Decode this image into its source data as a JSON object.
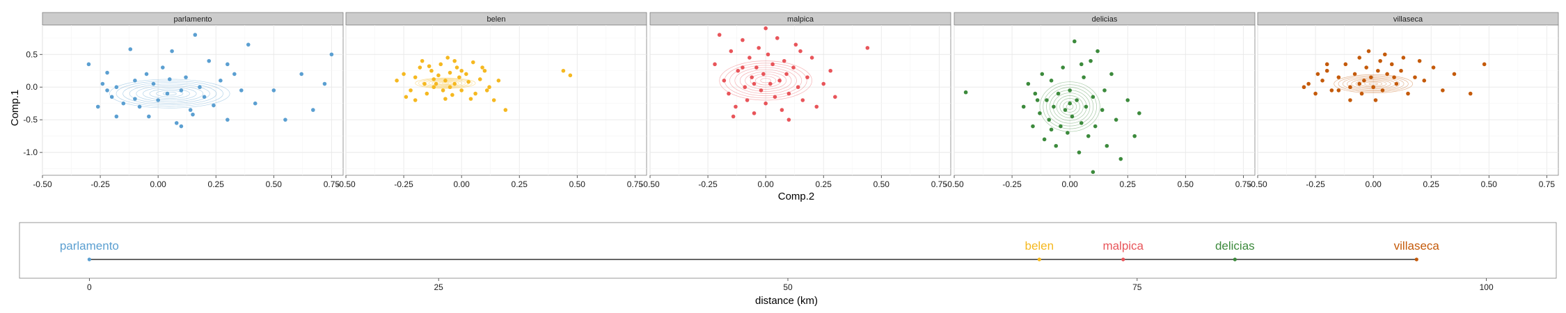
{
  "chart_data": [
    {
      "type": "scatter",
      "facets": [
        "parlamento",
        "belen",
        "malpica",
        "delicias",
        "villaseca"
      ],
      "xlabel": "Comp.2",
      "ylabel": "Comp.1",
      "xlim": [
        -0.5,
        0.8
      ],
      "ylim": [
        -1.35,
        0.95
      ],
      "xticks": [
        "-0.50",
        "-0.25",
        "0.00",
        "0.25",
        "0.50",
        "0.75"
      ],
      "xtick_values": [
        -0.5,
        -0.25,
        0,
        0.25,
        0.5,
        0.75
      ],
      "yticks": [
        "0.5",
        "0.0",
        "-0.5",
        "-1.0"
      ],
      "ytick_values": [
        0.5,
        0,
        -0.5,
        -1.0
      ],
      "grid": true,
      "density_contours": true,
      "series": [
        {
          "name": "parlamento",
          "color": "#5b9fd1",
          "center": [
            0.05,
            -0.1
          ],
          "spread": [
            0.26,
            0.22
          ],
          "points": [
            [
              -0.3,
              0.35
            ],
            [
              -0.24,
              0.05
            ],
            [
              -0.22,
              -0.05
            ],
            [
              -0.2,
              -0.15
            ],
            [
              -0.18,
              0.0
            ],
            [
              -0.15,
              -0.25
            ],
            [
              -0.12,
              0.58
            ],
            [
              -0.1,
              0.1
            ],
            [
              -0.08,
              -0.3
            ],
            [
              -0.05,
              0.2
            ],
            [
              -0.04,
              -0.45
            ],
            [
              -0.02,
              0.05
            ],
            [
              0.0,
              -0.2
            ],
            [
              0.02,
              0.3
            ],
            [
              0.04,
              -0.1
            ],
            [
              0.06,
              0.55
            ],
            [
              0.08,
              -0.55
            ],
            [
              0.1,
              -0.05
            ],
            [
              0.12,
              0.15
            ],
            [
              0.14,
              -0.35
            ],
            [
              0.16,
              0.8
            ],
            [
              0.18,
              0.0
            ],
            [
              0.2,
              -0.15
            ],
            [
              0.22,
              0.4
            ],
            [
              0.24,
              -0.28
            ],
            [
              0.27,
              0.1
            ],
            [
              0.3,
              -0.5
            ],
            [
              0.33,
              0.2
            ],
            [
              0.36,
              -0.05
            ],
            [
              0.39,
              0.65
            ],
            [
              0.42,
              -0.25
            ],
            [
              0.5,
              -0.05
            ],
            [
              0.55,
              -0.5
            ],
            [
              0.62,
              0.2
            ],
            [
              0.67,
              -0.35
            ],
            [
              0.72,
              0.05
            ],
            [
              0.75,
              0.5
            ],
            [
              -0.18,
              -0.45
            ],
            [
              -0.26,
              -0.3
            ],
            [
              0.1,
              -0.6
            ],
            [
              -0.1,
              -0.18
            ],
            [
              0.05,
              0.12
            ],
            [
              0.3,
              0.35
            ],
            [
              -0.22,
              0.22
            ],
            [
              0.15,
              -0.42
            ]
          ]
        },
        {
          "name": "belen",
          "color": "#f5b820",
          "center": [
            -0.07,
            0.06
          ],
          "spread": [
            0.13,
            0.08
          ],
          "points": [
            [
              -0.28,
              0.1
            ],
            [
              -0.25,
              0.2
            ],
            [
              -0.22,
              -0.05
            ],
            [
              -0.2,
              0.15
            ],
            [
              -0.18,
              0.3
            ],
            [
              -0.16,
              0.05
            ],
            [
              -0.15,
              -0.1
            ],
            [
              -0.13,
              0.25
            ],
            [
              -0.12,
              0.0
            ],
            [
              -0.1,
              0.18
            ],
            [
              -0.09,
              0.35
            ],
            [
              -0.08,
              -0.05
            ],
            [
              -0.07,
              0.1
            ],
            [
              -0.06,
              0.45
            ],
            [
              -0.05,
              0.22
            ],
            [
              -0.04,
              -0.12
            ],
            [
              -0.03,
              0.05
            ],
            [
              -0.02,
              0.3
            ],
            [
              -0.01,
              0.15
            ],
            [
              0.0,
              -0.05
            ],
            [
              0.02,
              0.2
            ],
            [
              0.03,
              0.08
            ],
            [
              0.05,
              0.38
            ],
            [
              0.06,
              -0.1
            ],
            [
              0.08,
              0.12
            ],
            [
              0.1,
              0.25
            ],
            [
              0.12,
              0.0
            ],
            [
              0.14,
              -0.2
            ],
            [
              0.16,
              0.1
            ],
            [
              0.19,
              -0.35
            ],
            [
              -0.2,
              -0.2
            ],
            [
              -0.11,
              0.05
            ],
            [
              -0.14,
              0.32
            ],
            [
              0.0,
              0.25
            ],
            [
              -0.05,
              0.0
            ],
            [
              0.44,
              0.25
            ],
            [
              0.47,
              0.18
            ],
            [
              -0.24,
              -0.15
            ],
            [
              0.04,
              -0.18
            ],
            [
              -0.17,
              0.4
            ],
            [
              -0.07,
              -0.18
            ],
            [
              0.09,
              0.3
            ],
            [
              -0.12,
              0.12
            ],
            [
              -0.03,
              0.4
            ],
            [
              0.11,
              -0.05
            ]
          ]
        },
        {
          "name": "malpica",
          "color": "#e8555a",
          "center": [
            0.0,
            0.1
          ],
          "spread": [
            0.2,
            0.3
          ],
          "points": [
            [
              -0.22,
              0.35
            ],
            [
              -0.2,
              0.8
            ],
            [
              -0.18,
              0.1
            ],
            [
              -0.16,
              -0.1
            ],
            [
              -0.15,
              0.55
            ],
            [
              -0.13,
              -0.3
            ],
            [
              -0.12,
              0.25
            ],
            [
              -0.1,
              0.72
            ],
            [
              -0.09,
              0.0
            ],
            [
              -0.08,
              -0.2
            ],
            [
              -0.07,
              0.45
            ],
            [
              -0.06,
              0.15
            ],
            [
              -0.05,
              -0.4
            ],
            [
              -0.04,
              0.3
            ],
            [
              -0.03,
              0.6
            ],
            [
              -0.02,
              -0.05
            ],
            [
              -0.01,
              0.2
            ],
            [
              0.0,
              -0.25
            ],
            [
              0.01,
              0.5
            ],
            [
              0.02,
              0.05
            ],
            [
              0.03,
              0.35
            ],
            [
              0.04,
              -0.15
            ],
            [
              0.05,
              0.75
            ],
            [
              0.06,
              0.1
            ],
            [
              0.07,
              -0.35
            ],
            [
              0.08,
              0.4
            ],
            [
              0.09,
              0.2
            ],
            [
              0.1,
              -0.1
            ],
            [
              0.12,
              0.3
            ],
            [
              0.13,
              0.65
            ],
            [
              0.14,
              0.0
            ],
            [
              0.16,
              -0.2
            ],
            [
              0.18,
              0.15
            ],
            [
              0.2,
              0.45
            ],
            [
              0.22,
              -0.3
            ],
            [
              0.25,
              0.05
            ],
            [
              0.28,
              0.25
            ],
            [
              0.3,
              -0.15
            ],
            [
              0.44,
              0.6
            ],
            [
              -0.14,
              -0.45
            ],
            [
              0.0,
              0.9
            ],
            [
              0.15,
              0.55
            ],
            [
              -0.05,
              0.05
            ],
            [
              0.1,
              -0.5
            ],
            [
              -0.1,
              0.3
            ]
          ]
        },
        {
          "name": "delicias",
          "color": "#3c8a3c",
          "center": [
            0.0,
            -0.3
          ],
          "spread": [
            0.13,
            0.38
          ],
          "points": [
            [
              -0.2,
              -0.3
            ],
            [
              -0.18,
              0.05
            ],
            [
              -0.16,
              -0.6
            ],
            [
              -0.15,
              -0.1
            ],
            [
              -0.13,
              -0.4
            ],
            [
              -0.12,
              0.2
            ],
            [
              -0.11,
              -0.8
            ],
            [
              -0.1,
              -0.2
            ],
            [
              -0.09,
              -0.5
            ],
            [
              -0.08,
              0.1
            ],
            [
              -0.07,
              -0.3
            ],
            [
              -0.06,
              -0.9
            ],
            [
              -0.05,
              -0.1
            ],
            [
              -0.04,
              -0.6
            ],
            [
              -0.03,
              0.3
            ],
            [
              -0.02,
              -0.35
            ],
            [
              -0.01,
              -0.7
            ],
            [
              0.0,
              -0.05
            ],
            [
              0.01,
              -0.45
            ],
            [
              0.02,
              0.7
            ],
            [
              0.03,
              -0.2
            ],
            [
              0.04,
              -1.0
            ],
            [
              0.05,
              -0.55
            ],
            [
              0.06,
              0.15
            ],
            [
              0.07,
              -0.3
            ],
            [
              0.08,
              -0.75
            ],
            [
              0.09,
              0.4
            ],
            [
              0.1,
              -0.15
            ],
            [
              0.11,
              -0.6
            ],
            [
              0.12,
              0.55
            ],
            [
              0.14,
              -0.35
            ],
            [
              0.16,
              -0.9
            ],
            [
              0.18,
              0.2
            ],
            [
              0.2,
              -0.5
            ],
            [
              0.22,
              -1.1
            ],
            [
              0.25,
              -0.2
            ],
            [
              0.28,
              -0.75
            ],
            [
              0.3,
              -0.4
            ],
            [
              -0.45,
              -0.08
            ],
            [
              0.1,
              -1.3
            ],
            [
              -0.14,
              -0.2
            ],
            [
              0.05,
              0.35
            ],
            [
              -0.08,
              -0.65
            ],
            [
              0.0,
              -0.25
            ],
            [
              0.15,
              -0.05
            ]
          ]
        },
        {
          "name": "villaseca",
          "color": "#c45a0a",
          "center": [
            0.0,
            0.05
          ],
          "spread": [
            0.17,
            0.14
          ],
          "points": [
            [
              -0.3,
              0.0
            ],
            [
              -0.28,
              0.05
            ],
            [
              -0.25,
              -0.1
            ],
            [
              -0.22,
              0.1
            ],
            [
              -0.2,
              0.25
            ],
            [
              -0.18,
              -0.05
            ],
            [
              -0.15,
              0.15
            ],
            [
              -0.12,
              0.35
            ],
            [
              -0.1,
              0.0
            ],
            [
              -0.08,
              0.2
            ],
            [
              -0.06,
              0.45
            ],
            [
              -0.05,
              -0.1
            ],
            [
              -0.04,
              0.1
            ],
            [
              -0.03,
              0.3
            ],
            [
              -0.02,
              0.55
            ],
            [
              -0.01,
              0.15
            ],
            [
              0.0,
              0.0
            ],
            [
              0.02,
              0.25
            ],
            [
              0.03,
              0.4
            ],
            [
              0.04,
              -0.05
            ],
            [
              0.06,
              0.2
            ],
            [
              0.08,
              0.35
            ],
            [
              0.1,
              0.05
            ],
            [
              0.12,
              0.25
            ],
            [
              0.15,
              -0.1
            ],
            [
              0.18,
              0.15
            ],
            [
              0.22,
              0.1
            ],
            [
              0.26,
              0.3
            ],
            [
              0.3,
              -0.05
            ],
            [
              0.35,
              0.2
            ],
            [
              0.42,
              -0.1
            ],
            [
              0.48,
              0.35
            ],
            [
              -0.1,
              -0.2
            ],
            [
              0.05,
              0.5
            ],
            [
              -0.2,
              0.35
            ],
            [
              0.2,
              0.4
            ],
            [
              -0.06,
              0.05
            ],
            [
              0.01,
              -0.2
            ],
            [
              0.13,
              0.45
            ],
            [
              -0.15,
              -0.05
            ],
            [
              0.09,
              0.15
            ],
            [
              -0.24,
              0.2
            ]
          ]
        }
      ]
    },
    {
      "type": "line",
      "xlabel": "distance (km)",
      "xlim": [
        -5,
        105
      ],
      "xticks": [
        "0",
        "25",
        "50",
        "75",
        "100"
      ],
      "xtick_values": [
        0,
        25,
        50,
        75,
        100
      ],
      "line_color": "#333333",
      "sites": [
        {
          "name": "parlamento",
          "distance": 0,
          "color": "#5b9fd1"
        },
        {
          "name": "belen",
          "distance": 68,
          "color": "#f5b820"
        },
        {
          "name": "malpica",
          "distance": 74,
          "color": "#e8555a"
        },
        {
          "name": "delicias",
          "distance": 82,
          "color": "#3c8a3c"
        },
        {
          "name": "villaseca",
          "distance": 95,
          "color": "#c45a0a"
        }
      ]
    }
  ]
}
